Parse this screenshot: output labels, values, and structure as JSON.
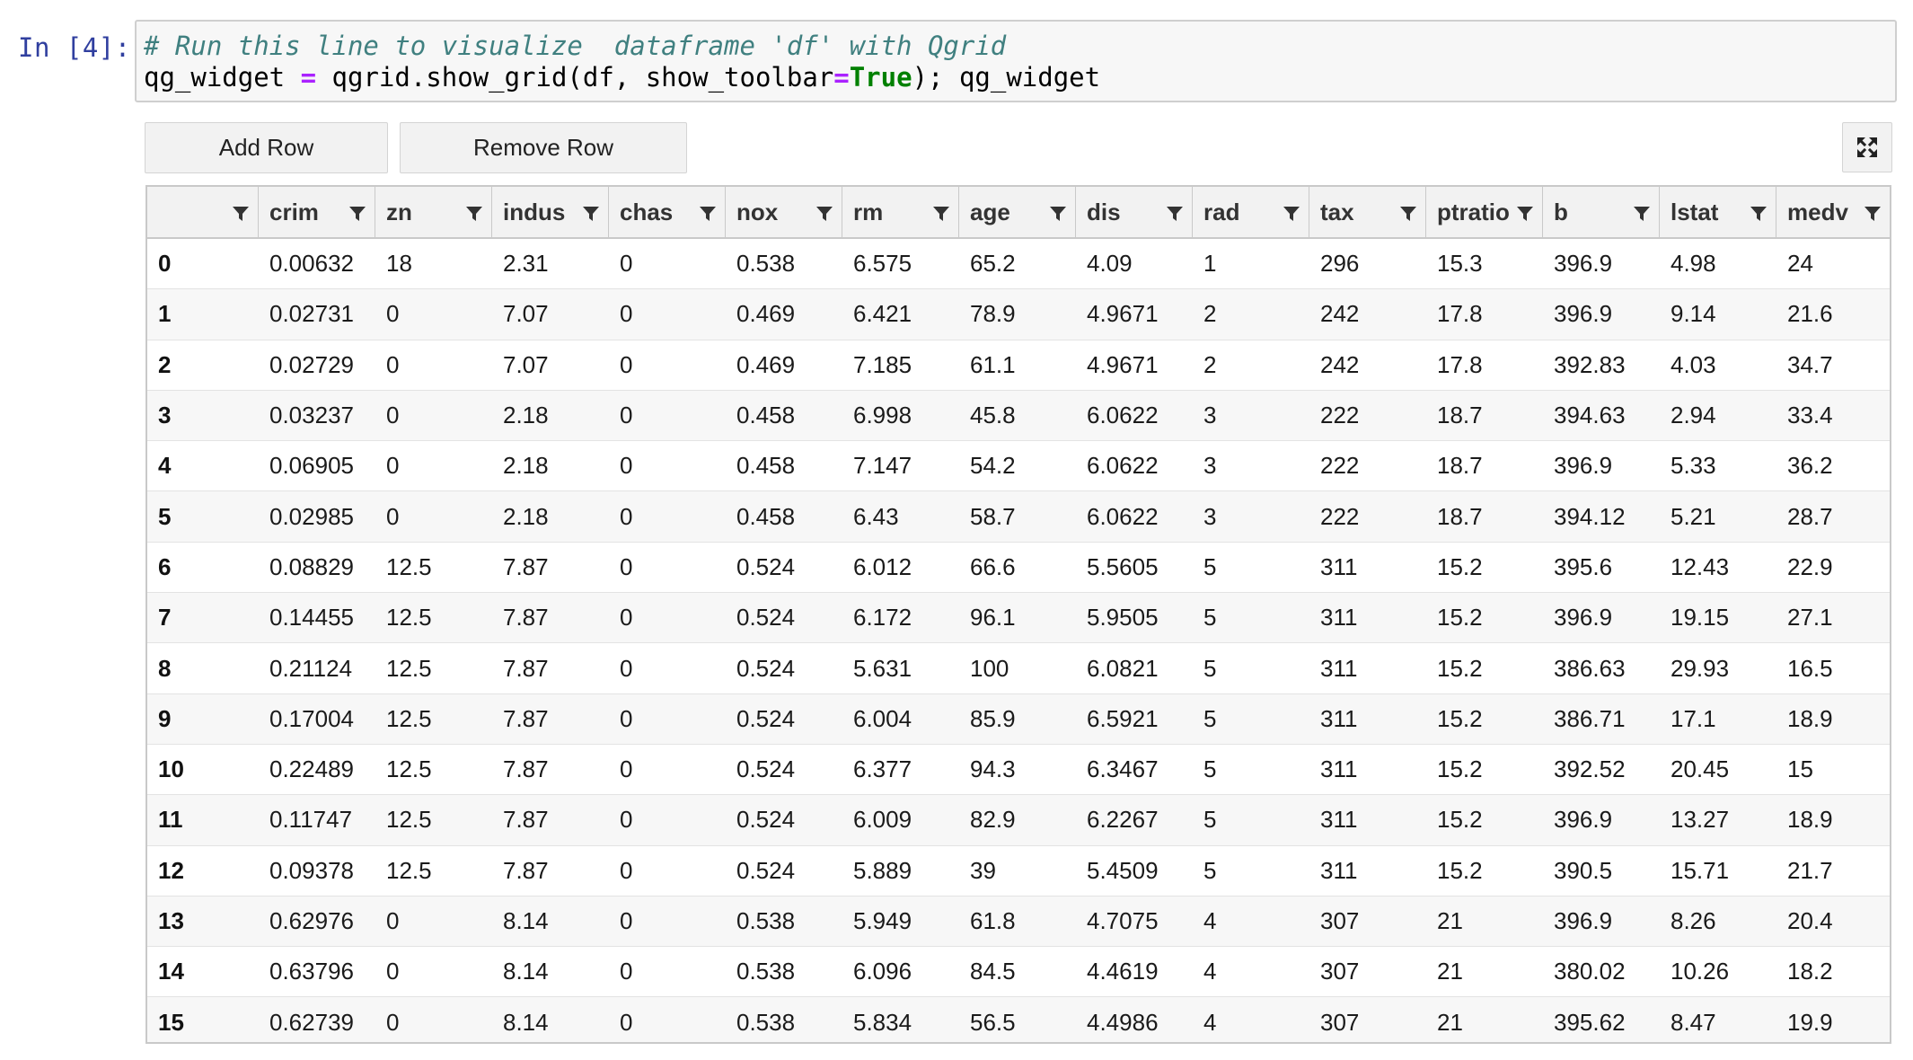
{
  "cell": {
    "prompt": "In [4]:",
    "code_line1_comment": "# Run this line to visualize  dataframe 'df' with Qgrid",
    "code_line2_a": "qg_widget ",
    "code_line2_eq": "=",
    "code_line2_b": " qgrid.show_grid(df, show_toolbar",
    "code_line2_eq2": "=",
    "code_line2_kw": "True",
    "code_line2_c": "); qg_widget"
  },
  "toolbar": {
    "add_row_label": "Add Row",
    "remove_row_label": "Remove Row",
    "fullscreen_icon": "expand-icon"
  },
  "table": {
    "columns": [
      "",
      "crim",
      "zn",
      "indus",
      "chas",
      "nox",
      "rm",
      "age",
      "dis",
      "rad",
      "tax",
      "ptratio",
      "b",
      "lstat",
      "medv"
    ],
    "rows": [
      [
        "0",
        "0.00632",
        "18",
        "2.31",
        "0",
        "0.538",
        "6.575",
        "65.2",
        "4.09",
        "1",
        "296",
        "15.3",
        "396.9",
        "4.98",
        "24"
      ],
      [
        "1",
        "0.02731",
        "0",
        "7.07",
        "0",
        "0.469",
        "6.421",
        "78.9",
        "4.9671",
        "2",
        "242",
        "17.8",
        "396.9",
        "9.14",
        "21.6"
      ],
      [
        "2",
        "0.02729",
        "0",
        "7.07",
        "0",
        "0.469",
        "7.185",
        "61.1",
        "4.9671",
        "2",
        "242",
        "17.8",
        "392.83",
        "4.03",
        "34.7"
      ],
      [
        "3",
        "0.03237",
        "0",
        "2.18",
        "0",
        "0.458",
        "6.998",
        "45.8",
        "6.0622",
        "3",
        "222",
        "18.7",
        "394.63",
        "2.94",
        "33.4"
      ],
      [
        "4",
        "0.06905",
        "0",
        "2.18",
        "0",
        "0.458",
        "7.147",
        "54.2",
        "6.0622",
        "3",
        "222",
        "18.7",
        "396.9",
        "5.33",
        "36.2"
      ],
      [
        "5",
        "0.02985",
        "0",
        "2.18",
        "0",
        "0.458",
        "6.43",
        "58.7",
        "6.0622",
        "3",
        "222",
        "18.7",
        "394.12",
        "5.21",
        "28.7"
      ],
      [
        "6",
        "0.08829",
        "12.5",
        "7.87",
        "0",
        "0.524",
        "6.012",
        "66.6",
        "5.5605",
        "5",
        "311",
        "15.2",
        "395.6",
        "12.43",
        "22.9"
      ],
      [
        "7",
        "0.14455",
        "12.5",
        "7.87",
        "0",
        "0.524",
        "6.172",
        "96.1",
        "5.9505",
        "5",
        "311",
        "15.2",
        "396.9",
        "19.15",
        "27.1"
      ],
      [
        "8",
        "0.21124",
        "12.5",
        "7.87",
        "0",
        "0.524",
        "5.631",
        "100",
        "6.0821",
        "5",
        "311",
        "15.2",
        "386.63",
        "29.93",
        "16.5"
      ],
      [
        "9",
        "0.17004",
        "12.5",
        "7.87",
        "0",
        "0.524",
        "6.004",
        "85.9",
        "6.5921",
        "5",
        "311",
        "15.2",
        "386.71",
        "17.1",
        "18.9"
      ],
      [
        "10",
        "0.22489",
        "12.5",
        "7.87",
        "0",
        "0.524",
        "6.377",
        "94.3",
        "6.3467",
        "5",
        "311",
        "15.2",
        "392.52",
        "20.45",
        "15"
      ],
      [
        "11",
        "0.11747",
        "12.5",
        "7.87",
        "0",
        "0.524",
        "6.009",
        "82.9",
        "6.2267",
        "5",
        "311",
        "15.2",
        "396.9",
        "13.27",
        "18.9"
      ],
      [
        "12",
        "0.09378",
        "12.5",
        "7.87",
        "0",
        "0.524",
        "5.889",
        "39",
        "5.4509",
        "5",
        "311",
        "15.2",
        "390.5",
        "15.71",
        "21.7"
      ],
      [
        "13",
        "0.62976",
        "0",
        "8.14",
        "0",
        "0.538",
        "5.949",
        "61.8",
        "4.7075",
        "4",
        "307",
        "21",
        "396.9",
        "8.26",
        "20.4"
      ],
      [
        "14",
        "0.63796",
        "0",
        "8.14",
        "0",
        "0.538",
        "6.096",
        "84.5",
        "4.4619",
        "4",
        "307",
        "21",
        "380.02",
        "10.26",
        "18.2"
      ],
      [
        "15",
        "0.62739",
        "0",
        "8.14",
        "0",
        "0.538",
        "5.834",
        "56.5",
        "4.4986",
        "4",
        "307",
        "21",
        "395.62",
        "8.47",
        "19.9"
      ]
    ]
  },
  "icons": {
    "filter": "filter-icon",
    "fullscreen": "expand-icon"
  },
  "colors": {
    "prompt": "#303f9f",
    "comment": "#408080",
    "operator": "#aa22ff",
    "keyword": "#008000"
  }
}
